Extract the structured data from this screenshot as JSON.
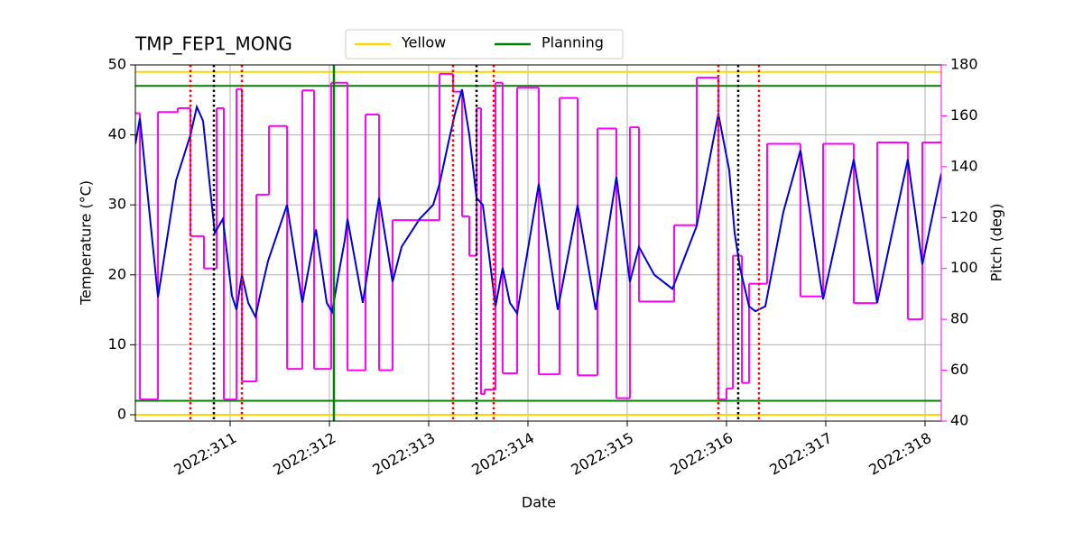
{
  "chart_data": {
    "type": "line",
    "title": "TMP_FEP1_MONG",
    "xlabel": "Date",
    "ylabel": "Temperature (°C)",
    "y2label": "Pitch (deg)",
    "xlim": [
      310.045,
      318.164
    ],
    "xticks": [
      {
        "value": 311,
        "label": "2022:311"
      },
      {
        "value": 312,
        "label": "2022:312"
      },
      {
        "value": 313,
        "label": "2022:313"
      },
      {
        "value": 314,
        "label": "2022:314"
      },
      {
        "value": 315,
        "label": "2022:315"
      },
      {
        "value": 316,
        "label": "2022:316"
      },
      {
        "value": 317,
        "label": "2022:317"
      },
      {
        "value": 318,
        "label": "2022:318"
      }
    ],
    "ylim": [
      -0.9,
      50
    ],
    "yticks": [
      0,
      10,
      20,
      30,
      40,
      50
    ],
    "y2lim": [
      40,
      180
    ],
    "y2ticks": [
      40,
      60,
      80,
      100,
      120,
      140,
      160,
      180
    ],
    "y2color": "#ff00ff",
    "grid": true,
    "legend": "upper center",
    "series": [
      {
        "color": "#0000dd",
        "x": [
          310.045,
          310.091,
          310.273,
          310.455,
          310.6,
          310.664,
          310.727,
          310.845,
          310.927,
          311.018,
          311.064,
          311.118,
          311.182,
          311.255,
          311.3,
          311.382,
          311.573,
          311.727,
          311.864,
          311.973,
          312.027,
          312.091,
          312.155,
          312.182,
          312.336,
          312.5,
          312.636,
          312.727,
          312.909,
          313.045,
          313.109,
          313.2,
          313.264,
          313.336,
          313.409,
          313.482,
          313.545,
          313.673,
          313.745,
          313.818,
          313.891,
          314.027,
          314.109,
          314.3,
          314.5,
          314.682,
          314.891,
          315.027,
          315.118,
          315.273,
          315.455,
          315.7,
          315.918,
          316.027,
          316.082,
          316.136,
          316.227,
          316.291,
          316.391,
          316.573,
          316.745,
          316.973,
          317.282,
          317.518,
          317.827,
          317.973,
          318.164
        ],
        "values": [
          38.7,
          42.4,
          16.8,
          33.5,
          40,
          44,
          42,
          26,
          28,
          17,
          15,
          20,
          16,
          14,
          17,
          22,
          30,
          16,
          26.5,
          16,
          14.7,
          20,
          25,
          28,
          16,
          31,
          19,
          24,
          28,
          30,
          33,
          39,
          43,
          46.5,
          40,
          31,
          30,
          15.5,
          21,
          16,
          14.5,
          26,
          33,
          15,
          30,
          15,
          34,
          19,
          24,
          20,
          18,
          27,
          43,
          35,
          26,
          21,
          15.5,
          14.8,
          15.5,
          29,
          37.8,
          16.5,
          36.5,
          16,
          36.5,
          21.5,
          34.5
        ]
      },
      {
        "color": "#ff00ff",
        "axis": "y2",
        "drawstyle": "steps-post",
        "x": [
          310.045,
          310.091,
          310.273,
          310.473,
          310.6,
          310.736,
          310.864,
          310.936,
          311.064,
          311.118,
          311.264,
          311.391,
          311.573,
          311.727,
          311.845,
          312.018,
          312.182,
          312.364,
          312.5,
          312.636,
          313.109,
          313.245,
          313.336,
          313.409,
          313.482,
          313.527,
          313.564,
          313.673,
          313.745,
          313.891,
          314.109,
          314.318,
          314.5,
          314.7,
          314.891,
          315.027,
          315.118,
          315.473,
          315.7,
          315.918,
          316.0,
          316.064,
          316.155,
          316.227,
          316.409,
          316.745,
          316.973,
          317.282,
          317.518,
          317.827,
          317.973,
          318.164
        ],
        "values": [
          161,
          48.5,
          161.5,
          163,
          112.7,
          100,
          163,
          48.5,
          170.5,
          55.6,
          129,
          156,
          60.5,
          170,
          60.5,
          173,
          60,
          160.5,
          60,
          119,
          176.5,
          169.5,
          120.5,
          105,
          163,
          50.6,
          52.4,
          173,
          58.8,
          171,
          58.4,
          167,
          58,
          155,
          49,
          155.5,
          87,
          117,
          175,
          48.5,
          52.8,
          105,
          55,
          94,
          149,
          89,
          149,
          86.4,
          149.5,
          80,
          149.5,
          149.5
        ]
      }
    ],
    "hlines": [
      {
        "name": "Yellow",
        "color": "#ffd700",
        "values": [
          49,
          0
        ]
      },
      {
        "name": "Planning",
        "color": "#008000",
        "values": [
          47,
          2
        ]
      }
    ],
    "vlines": [
      {
        "color": "#ff0000",
        "style": "dotted",
        "x": [
          310.6,
          311.118,
          313.245,
          313.655,
          315.918,
          316.327
        ]
      },
      {
        "color": "#000000",
        "style": "dotted",
        "x": [
          310.836,
          313.482,
          316.118
        ]
      },
      {
        "color": "#008000",
        "style": "solid",
        "x": [
          312.045
        ]
      }
    ]
  }
}
